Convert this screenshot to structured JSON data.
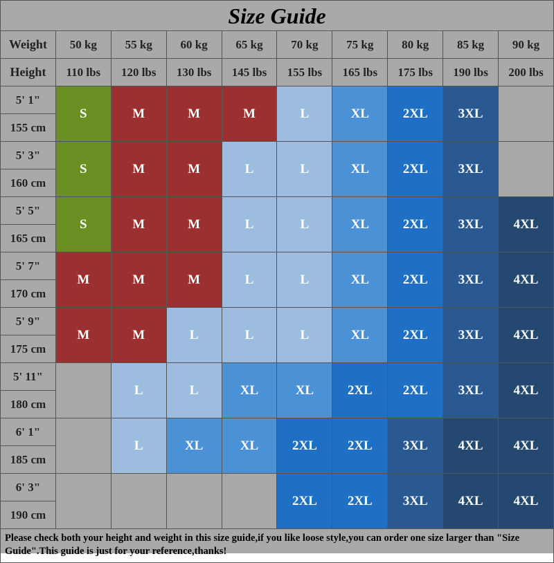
{
  "title": "Size Guide",
  "header": {
    "weight_label": "Weight",
    "height_label": "Height",
    "weights_kg": [
      "50 kg",
      "55 kg",
      "60 kg",
      "65 kg",
      "70 kg",
      "75 kg",
      "80 kg",
      "85 kg",
      "90 kg"
    ],
    "weights_lbs": [
      "110 lbs",
      "120 lbs",
      "130 lbs",
      "145 lbs",
      "155 lbs",
      "165 lbs",
      "175 lbs",
      "190 lbs",
      "200 lbs"
    ]
  },
  "heights": [
    {
      "ft": "5' 1\"",
      "cm": "155 cm"
    },
    {
      "ft": "5' 3\"",
      "cm": "160 cm"
    },
    {
      "ft": "5' 5\"",
      "cm": "165 cm"
    },
    {
      "ft": "5' 7\"",
      "cm": "170 cm"
    },
    {
      "ft": "5' 9\"",
      "cm": "175 cm"
    },
    {
      "ft": "5' 11\"",
      "cm": "180 cm"
    },
    {
      "ft": "6' 1\"",
      "cm": "185 cm"
    },
    {
      "ft": "6' 3\"",
      "cm": "190 cm"
    }
  ],
  "colors": {
    "S": "#6b8e23",
    "M": "#9c2f2f",
    "L": "#9dbde0",
    "XL": "#4b91d6",
    "2XL": "#1f6fc5",
    "3XL": "#2a5991",
    "4XL": "#24486f",
    "empty": "#a9a9a9"
  },
  "grid": [
    [
      "S",
      "M",
      "M",
      "M",
      "L",
      "XL",
      "2XL",
      "3XL",
      ""
    ],
    [
      "S",
      "M",
      "M",
      "L",
      "L",
      "XL",
      "2XL",
      "3XL",
      ""
    ],
    [
      "S",
      "M",
      "M",
      "L",
      "L",
      "XL",
      "2XL",
      "3XL",
      "4XL"
    ],
    [
      "M",
      "M",
      "M",
      "L",
      "L",
      "XL",
      "2XL",
      "3XL",
      "4XL"
    ],
    [
      "M",
      "M",
      "L",
      "L",
      "L",
      "XL",
      "2XL",
      "3XL",
      "4XL"
    ],
    [
      "",
      "L",
      "L",
      "XL",
      "XL",
      "2XL",
      "2XL",
      "3XL",
      "4XL"
    ],
    [
      "",
      "L",
      "XL",
      "XL",
      "2XL",
      "2XL",
      "3XL",
      "4XL",
      "4XL"
    ],
    [
      "",
      "",
      "",
      "",
      "2XL",
      "2XL",
      "3XL",
      "4XL",
      "4XL"
    ]
  ],
  "footer": "Please check both your height and weight in this size guide,if you like loose style,you can order one size larger than \"Size Guide\".This guide is just for your reference,thanks!",
  "style": {
    "background": "#a9a9a9",
    "border_color": "#555555",
    "title_fontsize": 32,
    "cell_fontsize": 19,
    "header_fontsize": 17,
    "footer_fontsize": 14.5,
    "cell_text_color": "#ffffff"
  }
}
